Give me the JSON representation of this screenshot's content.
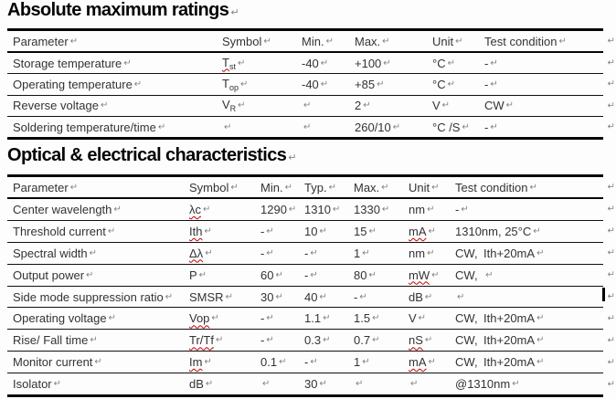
{
  "return_mark": "↵",
  "cursor": {
    "visible": true
  },
  "colors": {
    "body_text": "#333333",
    "title_text": "#050505",
    "table_border": "#060606",
    "return_mark": "#828282",
    "spellcheck_squiggle": "#c40000",
    "cursor": "#000000",
    "page_background": "#fdfdfd"
  },
  "sections": [
    {
      "title": "Absolute maximum ratings",
      "columns": [
        "Parameter",
        "Symbol",
        "Min.",
        "Max.",
        "Unit",
        "Test condition"
      ],
      "rows": [
        [
          {
            "t": "Storage temperature"
          },
          {
            "t": "T_st",
            "sq": true
          },
          {
            "t": "-40"
          },
          {
            "t": "+100"
          },
          {
            "t": "°C"
          },
          {
            "t": "-"
          }
        ],
        [
          {
            "t": "Operating temperature"
          },
          {
            "t": "T_op"
          },
          {
            "t": "-40"
          },
          {
            "t": "+85"
          },
          {
            "t": "°C"
          },
          {
            "t": "-"
          }
        ],
        [
          {
            "t": "Reverse voltage"
          },
          {
            "t": "V_R"
          },
          {
            "t": ""
          },
          {
            "t": "2"
          },
          {
            "t": "V"
          },
          {
            "t": "CW"
          }
        ],
        [
          {
            "t": "Soldering temperature/time"
          },
          {
            "t": ""
          },
          {
            "t": ""
          },
          {
            "t": "260/10"
          },
          {
            "t": "°C /S"
          },
          {
            "t": "-"
          }
        ]
      ]
    },
    {
      "title": "Optical & electrical characteristics",
      "columns": [
        "Parameter",
        "Symbol",
        "Min.",
        "Typ.",
        "Max.",
        "Unit",
        "Test condition"
      ],
      "rows": [
        [
          {
            "t": "Center wavelength"
          },
          {
            "t": "λc",
            "sq": true
          },
          {
            "t": "1290"
          },
          {
            "t": "1310"
          },
          {
            "t": "1330"
          },
          {
            "t": "nm"
          },
          {
            "t": "-"
          }
        ],
        [
          {
            "t": "Threshold current"
          },
          {
            "t": "Ith",
            "sq": true
          },
          {
            "t": "-"
          },
          {
            "t": "10"
          },
          {
            "t": "15"
          },
          {
            "t": "mA",
            "sq": true
          },
          {
            "t": "1310nm, 25°C"
          }
        ],
        [
          {
            "t": "Spectral width"
          },
          {
            "t": "Δλ",
            "sq": true
          },
          {
            "t": "-"
          },
          {
            "t": "-"
          },
          {
            "t": "1"
          },
          {
            "t": "nm"
          },
          {
            "t": "CW，Ith+20mA"
          }
        ],
        [
          {
            "t": "Output power"
          },
          {
            "t": "P"
          },
          {
            "t": "60"
          },
          {
            "t": "-"
          },
          {
            "t": "80"
          },
          {
            "t": "mW",
            "sq": true
          },
          {
            "t": "CW，"
          }
        ],
        [
          {
            "t": "Side mode suppression ratio"
          },
          {
            "t": "SMSR"
          },
          {
            "t": "30"
          },
          {
            "t": "40"
          },
          {
            "t": "-"
          },
          {
            "t": "dB"
          },
          {
            "t": ""
          }
        ],
        [
          {
            "t": "Operating voltage"
          },
          {
            "t": "Vop",
            "sq": true
          },
          {
            "t": "-"
          },
          {
            "t": "1.1"
          },
          {
            "t": "1.5"
          },
          {
            "t": "V"
          },
          {
            "t": "CW，Ith+20mA"
          }
        ],
        [
          {
            "t": "Rise/ Fall time"
          },
          {
            "t": "Tr/Tf",
            "sq": true
          },
          {
            "t": "-"
          },
          {
            "t": "0.3"
          },
          {
            "t": "0.7"
          },
          {
            "t": "nS",
            "sq": true
          },
          {
            "t": "CW，Ith+20mA"
          }
        ],
        [
          {
            "t": "Monitor current"
          },
          {
            "t": "Im",
            "sq": true
          },
          {
            "t": "0.1"
          },
          {
            "t": "-"
          },
          {
            "t": "1"
          },
          {
            "t": "mA",
            "sq": true
          },
          {
            "t": "CW，Ith+20mA"
          }
        ],
        [
          {
            "t": "Isolator"
          },
          {
            "t": "dB"
          },
          {
            "t": ""
          },
          {
            "t": "30"
          },
          {
            "t": ""
          },
          {
            "t": ""
          },
          {
            "t": "@1310nm"
          }
        ]
      ]
    }
  ]
}
